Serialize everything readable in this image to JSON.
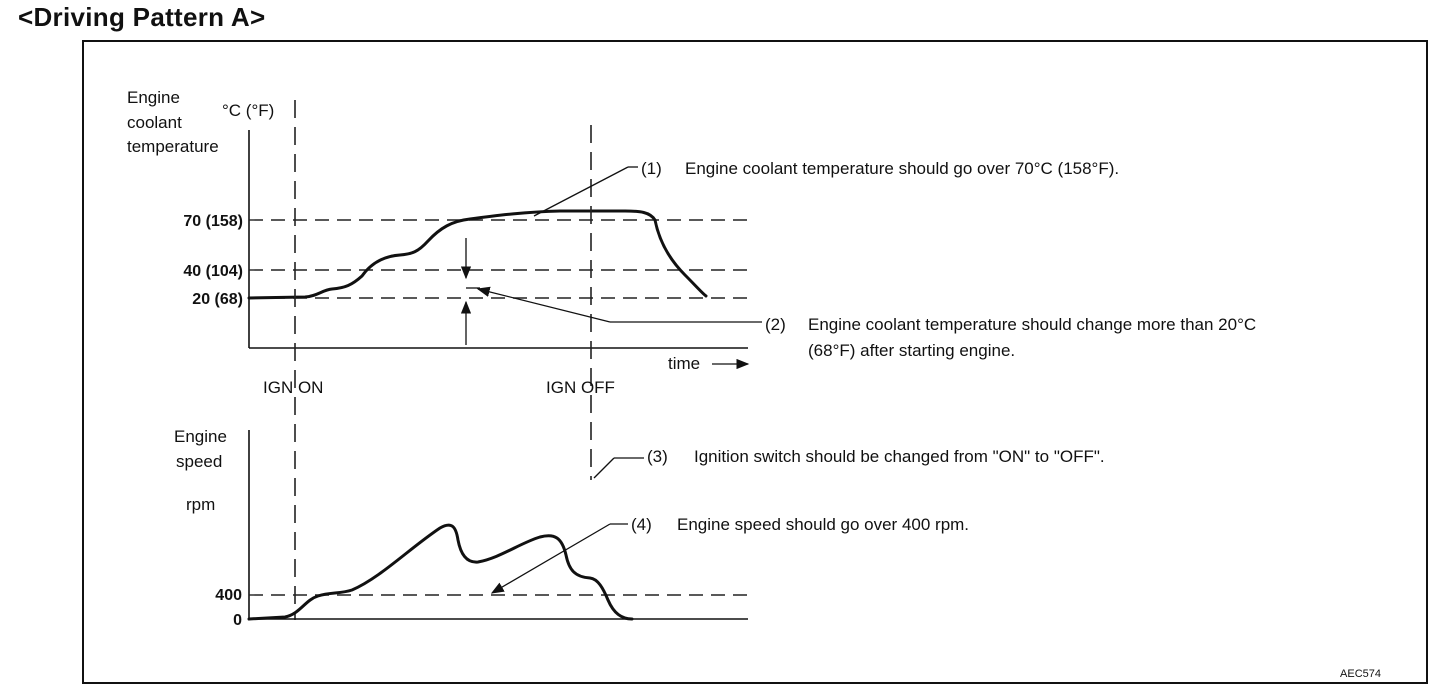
{
  "title": "<Driving Pattern A>",
  "figure_code": "AEC574",
  "top_chart": {
    "ylabel_lines": [
      "Engine",
      "coolant",
      "temperature"
    ],
    "unit": "°C (°F)",
    "ticks": [
      "70 (158)",
      "40 (104)",
      "20 (68)"
    ],
    "xlabel": "time",
    "events": [
      "IGN ON",
      "IGN OFF"
    ]
  },
  "bottom_chart": {
    "ylabel_lines": [
      "Engine",
      "speed"
    ],
    "unit": "rpm",
    "ticks": [
      "400",
      "0"
    ]
  },
  "notes": {
    "n1_num": "(1)",
    "n1_text": "Engine coolant temperature should go over 70°C (158°F).",
    "n2_num": "(2)",
    "n2_line1": "Engine coolant temperature should change more than 20°C",
    "n2_line2": "(68°F) after starting engine.",
    "n3_num": "(3)",
    "n3_text": "Ignition switch should be changed from \"ON\" to \"OFF\".",
    "n4_num": "(4)",
    "n4_text": "Engine speed should go over 400 rpm."
  }
}
